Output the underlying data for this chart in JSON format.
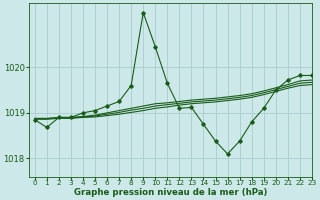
{
  "title": "Graphe pression niveau de la mer (hPa)",
  "bg_color": "#cce8e8",
  "grid_color": "#aacccc",
  "line_color": "#1a5c1a",
  "xlim": [
    -0.5,
    23
  ],
  "ylim": [
    1017.6,
    1021.4
  ],
  "yticks": [
    1018,
    1019,
    1020
  ],
  "xticks": [
    0,
    1,
    2,
    3,
    4,
    5,
    6,
    7,
    8,
    9,
    10,
    11,
    12,
    13,
    14,
    15,
    16,
    17,
    18,
    19,
    20,
    21,
    22,
    23
  ],
  "spiky": {
    "x": [
      0,
      1,
      2,
      3,
      4,
      5,
      6,
      7,
      8,
      9,
      10,
      11,
      12,
      13,
      14,
      15,
      16,
      17,
      18,
      19,
      20,
      21,
      22,
      23
    ],
    "y": [
      1018.85,
      1018.68,
      1018.9,
      1018.9,
      1019.0,
      1019.05,
      1019.15,
      1019.25,
      1019.6,
      1021.2,
      1020.45,
      1019.65,
      1019.1,
      1019.12,
      1018.75,
      1018.38,
      1018.1,
      1018.38,
      1018.8,
      1019.1,
      1019.5,
      1019.72,
      1019.82,
      1019.82
    ]
  },
  "line2": {
    "x": [
      0,
      1,
      2,
      3,
      4,
      5,
      6,
      7,
      8,
      9,
      10,
      11,
      12,
      13,
      14,
      15,
      16,
      17,
      18,
      19,
      20,
      21,
      22,
      23
    ],
    "y": [
      1018.88,
      1018.88,
      1018.9,
      1018.9,
      1018.92,
      1018.95,
      1019.0,
      1019.05,
      1019.1,
      1019.15,
      1019.2,
      1019.22,
      1019.25,
      1019.28,
      1019.3,
      1019.32,
      1019.35,
      1019.38,
      1019.42,
      1019.48,
      1019.55,
      1019.62,
      1019.7,
      1019.72
    ]
  },
  "line3": {
    "x": [
      0,
      1,
      2,
      3,
      4,
      5,
      6,
      7,
      8,
      9,
      10,
      11,
      12,
      13,
      14,
      15,
      16,
      17,
      18,
      19,
      20,
      21,
      22,
      23
    ],
    "y": [
      1018.87,
      1018.87,
      1018.89,
      1018.89,
      1018.91,
      1018.93,
      1018.97,
      1019.01,
      1019.06,
      1019.1,
      1019.15,
      1019.18,
      1019.21,
      1019.24,
      1019.26,
      1019.28,
      1019.31,
      1019.34,
      1019.38,
      1019.44,
      1019.51,
      1019.58,
      1019.65,
      1019.67
    ]
  },
  "line4": {
    "x": [
      0,
      1,
      2,
      3,
      4,
      5,
      6,
      7,
      8,
      9,
      10,
      11,
      12,
      13,
      14,
      15,
      16,
      17,
      18,
      19,
      20,
      21,
      22,
      23
    ],
    "y": [
      1018.86,
      1018.86,
      1018.88,
      1018.88,
      1018.9,
      1018.91,
      1018.94,
      1018.97,
      1019.01,
      1019.05,
      1019.1,
      1019.13,
      1019.17,
      1019.2,
      1019.22,
      1019.24,
      1019.27,
      1019.3,
      1019.34,
      1019.4,
      1019.47,
      1019.54,
      1019.6,
      1019.62
    ]
  }
}
